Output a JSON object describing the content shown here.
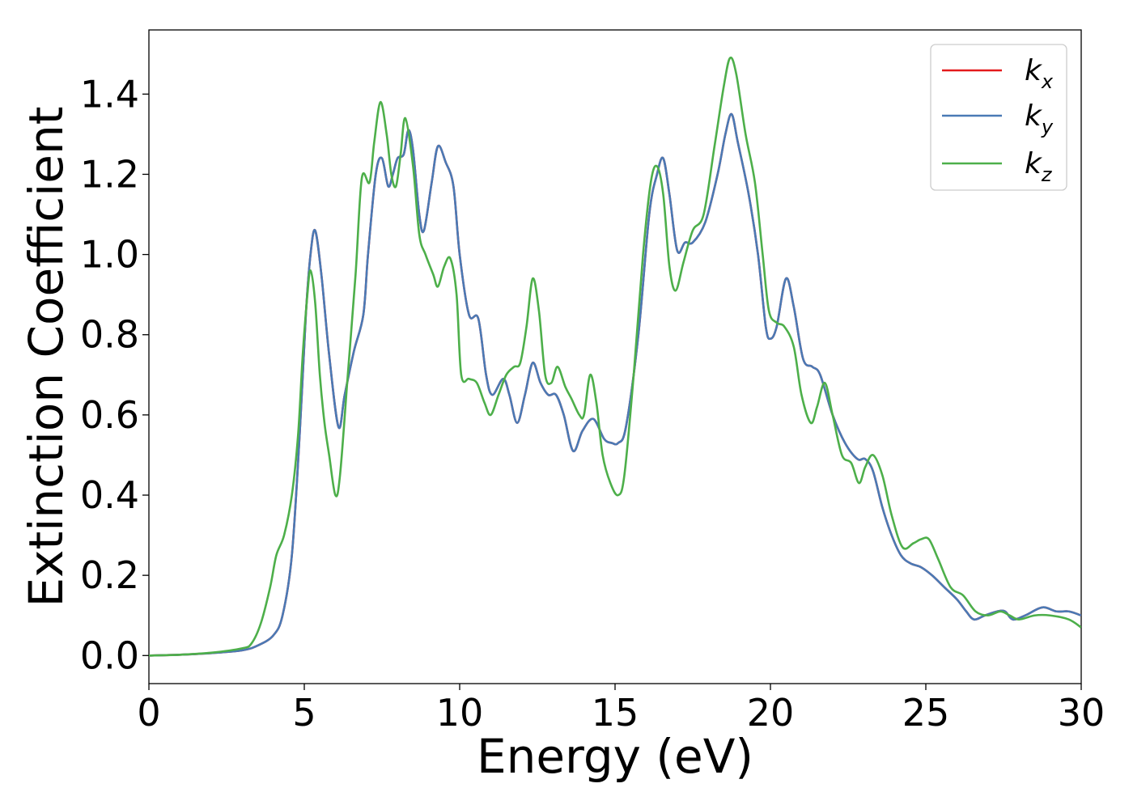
{
  "chart_data": {
    "type": "line",
    "title": "",
    "xlabel": "Energy (eV)",
    "ylabel": "Extinction Coefficient",
    "xlim": [
      0,
      30
    ],
    "ylim": [
      -0.07,
      1.56
    ],
    "xticks": [
      "0",
      "5",
      "10",
      "15",
      "20",
      "25",
      "30"
    ],
    "yticks": [
      "0.0",
      "0.2",
      "0.4",
      "0.6",
      "0.8",
      "1.0",
      "1.2",
      "1.4"
    ],
    "grid": false,
    "legend_position": "top-right",
    "series": [
      {
        "name": "kx",
        "symbol": "k",
        "subscript": "x",
        "color": "#e41a1c",
        "points": [
          [
            0,
            0
          ],
          [
            1,
            0.002
          ],
          [
            2,
            0.006
          ],
          [
            3,
            0.013
          ],
          [
            3.5,
            0.025
          ],
          [
            4,
            0.05
          ],
          [
            4.3,
            0.1
          ],
          [
            4.6,
            0.25
          ],
          [
            4.85,
            0.55
          ],
          [
            5.05,
            0.85
          ],
          [
            5.2,
            1.0
          ],
          [
            5.35,
            1.06
          ],
          [
            5.55,
            0.95
          ],
          [
            5.8,
            0.75
          ],
          [
            6.1,
            0.57
          ],
          [
            6.3,
            0.65
          ],
          [
            6.6,
            0.76
          ],
          [
            6.9,
            0.85
          ],
          [
            7.05,
            1.0
          ],
          [
            7.3,
            1.2
          ],
          [
            7.5,
            1.24
          ],
          [
            7.7,
            1.17
          ],
          [
            7.85,
            1.2
          ],
          [
            8.0,
            1.24
          ],
          [
            8.2,
            1.25
          ],
          [
            8.35,
            1.31
          ],
          [
            8.5,
            1.26
          ],
          [
            8.7,
            1.1
          ],
          [
            8.85,
            1.06
          ],
          [
            9.1,
            1.18
          ],
          [
            9.3,
            1.27
          ],
          [
            9.55,
            1.23
          ],
          [
            9.8,
            1.17
          ],
          [
            10.0,
            1.0
          ],
          [
            10.3,
            0.85
          ],
          [
            10.6,
            0.84
          ],
          [
            10.85,
            0.7
          ],
          [
            11.05,
            0.65
          ],
          [
            11.4,
            0.69
          ],
          [
            11.6,
            0.65
          ],
          [
            11.85,
            0.58
          ],
          [
            12.1,
            0.65
          ],
          [
            12.35,
            0.73
          ],
          [
            12.6,
            0.68
          ],
          [
            12.85,
            0.65
          ],
          [
            13.1,
            0.65
          ],
          [
            13.35,
            0.6
          ],
          [
            13.65,
            0.51
          ],
          [
            13.95,
            0.56
          ],
          [
            14.3,
            0.59
          ],
          [
            14.65,
            0.54
          ],
          [
            14.9,
            0.53
          ],
          [
            15.1,
            0.53
          ],
          [
            15.35,
            0.57
          ],
          [
            15.75,
            0.8
          ],
          [
            16.1,
            1.1
          ],
          [
            16.35,
            1.2
          ],
          [
            16.55,
            1.24
          ],
          [
            16.75,
            1.15
          ],
          [
            17.0,
            1.01
          ],
          [
            17.25,
            1.03
          ],
          [
            17.5,
            1.03
          ],
          [
            17.9,
            1.08
          ],
          [
            18.3,
            1.2
          ],
          [
            18.55,
            1.3
          ],
          [
            18.75,
            1.35
          ],
          [
            18.95,
            1.28
          ],
          [
            19.3,
            1.15
          ],
          [
            19.6,
            1.0
          ],
          [
            19.85,
            0.82
          ],
          [
            20.0,
            0.79
          ],
          [
            20.2,
            0.82
          ],
          [
            20.5,
            0.94
          ],
          [
            20.75,
            0.87
          ],
          [
            21.05,
            0.74
          ],
          [
            21.35,
            0.72
          ],
          [
            21.6,
            0.7
          ],
          [
            22.0,
            0.6
          ],
          [
            22.4,
            0.53
          ],
          [
            22.8,
            0.49
          ],
          [
            23.05,
            0.49
          ],
          [
            23.3,
            0.46
          ],
          [
            23.6,
            0.37
          ],
          [
            23.9,
            0.3
          ],
          [
            24.2,
            0.25
          ],
          [
            24.5,
            0.23
          ],
          [
            24.85,
            0.22
          ],
          [
            25.2,
            0.2
          ],
          [
            25.6,
            0.17
          ],
          [
            26.0,
            0.14
          ],
          [
            26.3,
            0.11
          ],
          [
            26.55,
            0.09
          ],
          [
            26.9,
            0.1
          ],
          [
            27.3,
            0.11
          ],
          [
            27.55,
            0.11
          ],
          [
            27.8,
            0.09
          ],
          [
            28.2,
            0.1
          ],
          [
            28.75,
            0.12
          ],
          [
            29.2,
            0.11
          ],
          [
            29.6,
            0.11
          ],
          [
            30,
            0.1
          ]
        ]
      },
      {
        "name": "ky",
        "symbol": "k",
        "subscript": "y",
        "color": "#4a7ab5",
        "points": [
          [
            0,
            0
          ],
          [
            1,
            0.002
          ],
          [
            2,
            0.006
          ],
          [
            3,
            0.013
          ],
          [
            3.5,
            0.025
          ],
          [
            4,
            0.05
          ],
          [
            4.3,
            0.1
          ],
          [
            4.6,
            0.25
          ],
          [
            4.85,
            0.55
          ],
          [
            5.05,
            0.85
          ],
          [
            5.2,
            1.0
          ],
          [
            5.35,
            1.06
          ],
          [
            5.55,
            0.95
          ],
          [
            5.8,
            0.75
          ],
          [
            6.1,
            0.57
          ],
          [
            6.3,
            0.65
          ],
          [
            6.6,
            0.76
          ],
          [
            6.9,
            0.85
          ],
          [
            7.05,
            1.0
          ],
          [
            7.3,
            1.2
          ],
          [
            7.5,
            1.24
          ],
          [
            7.7,
            1.17
          ],
          [
            7.85,
            1.2
          ],
          [
            8.0,
            1.24
          ],
          [
            8.2,
            1.25
          ],
          [
            8.35,
            1.31
          ],
          [
            8.5,
            1.26
          ],
          [
            8.7,
            1.1
          ],
          [
            8.85,
            1.06
          ],
          [
            9.1,
            1.18
          ],
          [
            9.3,
            1.27
          ],
          [
            9.55,
            1.23
          ],
          [
            9.8,
            1.17
          ],
          [
            10.0,
            1.0
          ],
          [
            10.3,
            0.85
          ],
          [
            10.6,
            0.84
          ],
          [
            10.85,
            0.7
          ],
          [
            11.05,
            0.65
          ],
          [
            11.4,
            0.69
          ],
          [
            11.6,
            0.65
          ],
          [
            11.85,
            0.58
          ],
          [
            12.1,
            0.65
          ],
          [
            12.35,
            0.73
          ],
          [
            12.6,
            0.68
          ],
          [
            12.85,
            0.65
          ],
          [
            13.1,
            0.65
          ],
          [
            13.35,
            0.6
          ],
          [
            13.65,
            0.51
          ],
          [
            13.95,
            0.56
          ],
          [
            14.3,
            0.59
          ],
          [
            14.65,
            0.54
          ],
          [
            14.9,
            0.53
          ],
          [
            15.1,
            0.53
          ],
          [
            15.35,
            0.57
          ],
          [
            15.75,
            0.8
          ],
          [
            16.1,
            1.1
          ],
          [
            16.35,
            1.2
          ],
          [
            16.55,
            1.24
          ],
          [
            16.75,
            1.15
          ],
          [
            17.0,
            1.01
          ],
          [
            17.25,
            1.03
          ],
          [
            17.5,
            1.03
          ],
          [
            17.9,
            1.08
          ],
          [
            18.3,
            1.2
          ],
          [
            18.55,
            1.3
          ],
          [
            18.75,
            1.35
          ],
          [
            18.95,
            1.28
          ],
          [
            19.3,
            1.15
          ],
          [
            19.6,
            1.0
          ],
          [
            19.85,
            0.82
          ],
          [
            20.0,
            0.79
          ],
          [
            20.2,
            0.82
          ],
          [
            20.5,
            0.94
          ],
          [
            20.75,
            0.87
          ],
          [
            21.05,
            0.74
          ],
          [
            21.35,
            0.72
          ],
          [
            21.6,
            0.7
          ],
          [
            22.0,
            0.6
          ],
          [
            22.4,
            0.53
          ],
          [
            22.8,
            0.49
          ],
          [
            23.05,
            0.49
          ],
          [
            23.3,
            0.46
          ],
          [
            23.6,
            0.37
          ],
          [
            23.9,
            0.3
          ],
          [
            24.2,
            0.25
          ],
          [
            24.5,
            0.23
          ],
          [
            24.85,
            0.22
          ],
          [
            25.2,
            0.2
          ],
          [
            25.6,
            0.17
          ],
          [
            26.0,
            0.14
          ],
          [
            26.3,
            0.11
          ],
          [
            26.55,
            0.09
          ],
          [
            26.9,
            0.1
          ],
          [
            27.3,
            0.11
          ],
          [
            27.55,
            0.11
          ],
          [
            27.8,
            0.09
          ],
          [
            28.2,
            0.1
          ],
          [
            28.75,
            0.12
          ],
          [
            29.2,
            0.11
          ],
          [
            29.6,
            0.11
          ],
          [
            30,
            0.1
          ]
        ]
      },
      {
        "name": "kz",
        "symbol": "k",
        "subscript": "z",
        "color": "#4daf4a",
        "points": [
          [
            0,
            0
          ],
          [
            1,
            0.002
          ],
          [
            2,
            0.007
          ],
          [
            3,
            0.018
          ],
          [
            3.3,
            0.03
          ],
          [
            3.6,
            0.08
          ],
          [
            3.9,
            0.17
          ],
          [
            4.1,
            0.25
          ],
          [
            4.35,
            0.3
          ],
          [
            4.6,
            0.4
          ],
          [
            4.8,
            0.55
          ],
          [
            4.95,
            0.75
          ],
          [
            5.1,
            0.9
          ],
          [
            5.2,
            0.96
          ],
          [
            5.35,
            0.88
          ],
          [
            5.5,
            0.7
          ],
          [
            5.65,
            0.58
          ],
          [
            5.8,
            0.5
          ],
          [
            6.0,
            0.4
          ],
          [
            6.15,
            0.45
          ],
          [
            6.4,
            0.7
          ],
          [
            6.65,
            0.95
          ],
          [
            6.85,
            1.19
          ],
          [
            7.1,
            1.18
          ],
          [
            7.25,
            1.28
          ],
          [
            7.45,
            1.38
          ],
          [
            7.65,
            1.3
          ],
          [
            7.8,
            1.2
          ],
          [
            7.95,
            1.17
          ],
          [
            8.1,
            1.25
          ],
          [
            8.25,
            1.34
          ],
          [
            8.5,
            1.22
          ],
          [
            8.7,
            1.05
          ],
          [
            8.9,
            1.0
          ],
          [
            9.15,
            0.95
          ],
          [
            9.3,
            0.92
          ],
          [
            9.5,
            0.97
          ],
          [
            9.7,
            0.99
          ],
          [
            9.9,
            0.9
          ],
          [
            10.05,
            0.7
          ],
          [
            10.3,
            0.69
          ],
          [
            10.55,
            0.68
          ],
          [
            10.8,
            0.63
          ],
          [
            11.0,
            0.6
          ],
          [
            11.25,
            0.65
          ],
          [
            11.5,
            0.7
          ],
          [
            11.75,
            0.72
          ],
          [
            11.95,
            0.73
          ],
          [
            12.15,
            0.82
          ],
          [
            12.35,
            0.94
          ],
          [
            12.55,
            0.86
          ],
          [
            12.75,
            0.7
          ],
          [
            12.95,
            0.68
          ],
          [
            13.15,
            0.72
          ],
          [
            13.4,
            0.67
          ],
          [
            13.6,
            0.64
          ],
          [
            13.85,
            0.6
          ],
          [
            14.0,
            0.6
          ],
          [
            14.2,
            0.7
          ],
          [
            14.4,
            0.63
          ],
          [
            14.6,
            0.5
          ],
          [
            14.85,
            0.43
          ],
          [
            15.1,
            0.4
          ],
          [
            15.3,
            0.45
          ],
          [
            15.6,
            0.7
          ],
          [
            15.9,
            1.0
          ],
          [
            16.15,
            1.18
          ],
          [
            16.35,
            1.22
          ],
          [
            16.55,
            1.15
          ],
          [
            16.75,
            0.97
          ],
          [
            16.95,
            0.91
          ],
          [
            17.2,
            0.98
          ],
          [
            17.5,
            1.06
          ],
          [
            17.85,
            1.1
          ],
          [
            18.2,
            1.27
          ],
          [
            18.5,
            1.42
          ],
          [
            18.7,
            1.49
          ],
          [
            18.9,
            1.45
          ],
          [
            19.2,
            1.3
          ],
          [
            19.5,
            1.18
          ],
          [
            19.75,
            1.0
          ],
          [
            19.95,
            0.86
          ],
          [
            20.2,
            0.83
          ],
          [
            20.45,
            0.82
          ],
          [
            20.75,
            0.77
          ],
          [
            21.0,
            0.65
          ],
          [
            21.3,
            0.58
          ],
          [
            21.5,
            0.62
          ],
          [
            21.75,
            0.68
          ],
          [
            22.0,
            0.6
          ],
          [
            22.3,
            0.5
          ],
          [
            22.6,
            0.48
          ],
          [
            22.85,
            0.43
          ],
          [
            23.05,
            0.47
          ],
          [
            23.3,
            0.5
          ],
          [
            23.6,
            0.45
          ],
          [
            23.9,
            0.35
          ],
          [
            24.25,
            0.27
          ],
          [
            24.6,
            0.28
          ],
          [
            24.85,
            0.29
          ],
          [
            25.1,
            0.29
          ],
          [
            25.4,
            0.24
          ],
          [
            25.8,
            0.17
          ],
          [
            26.2,
            0.15
          ],
          [
            26.6,
            0.11
          ],
          [
            27.0,
            0.1
          ],
          [
            27.4,
            0.11
          ],
          [
            27.7,
            0.1
          ],
          [
            28.0,
            0.09
          ],
          [
            28.5,
            0.1
          ],
          [
            29.0,
            0.1
          ],
          [
            29.6,
            0.09
          ],
          [
            30,
            0.07
          ]
        ]
      }
    ]
  }
}
